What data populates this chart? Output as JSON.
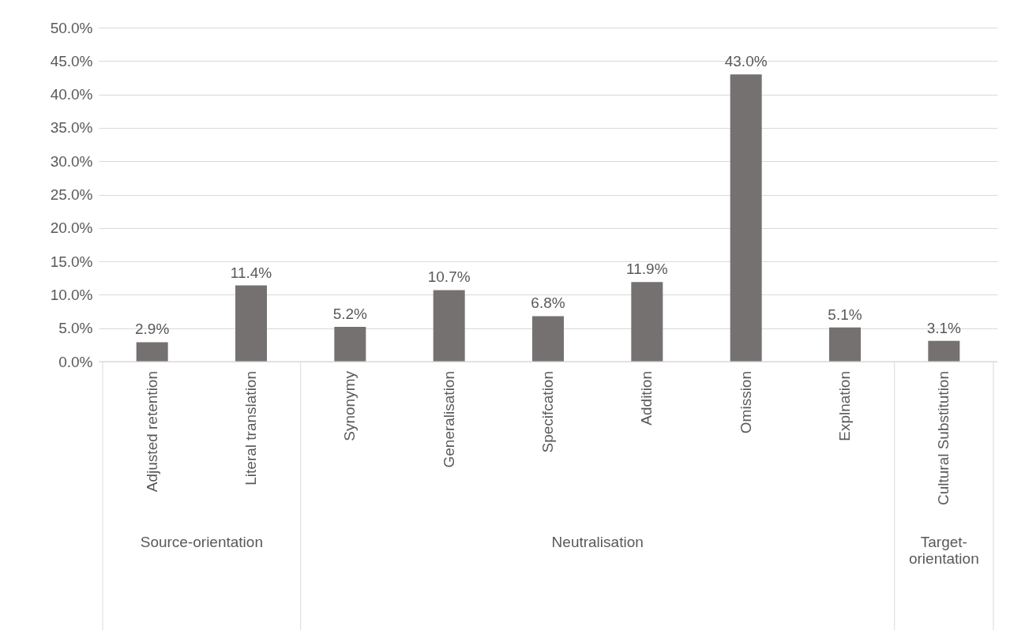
{
  "chart_data": {
    "type": "bar",
    "categories": [
      "Adjusted retention",
      "Literal translation",
      "Synonymy",
      "Generalisation",
      "Specifcation",
      "Addition",
      "Omission",
      "Explnation",
      "Cultural Substitution"
    ],
    "values": [
      2.9,
      11.4,
      5.2,
      10.7,
      6.8,
      11.9,
      43.0,
      5.1,
      3.1
    ],
    "value_labels": [
      "2.9%",
      "11.4%",
      "5.2%",
      "10.7%",
      "6.8%",
      "11.9%",
      "43.0%",
      "5.1%",
      "3.1%"
    ],
    "color": "#767171",
    "ylim": [
      0,
      50
    ],
    "yticks": [
      {
        "value": 0,
        "label": "0.0%"
      },
      {
        "value": 5,
        "label": "5.0%"
      },
      {
        "value": 10,
        "label": "10.0%"
      },
      {
        "value": 15,
        "label": "15.0%"
      },
      {
        "value": 20,
        "label": "20.0%"
      },
      {
        "value": 25,
        "label": "25.0%"
      },
      {
        "value": 30,
        "label": "30.0%"
      },
      {
        "value": 35,
        "label": "35.0%"
      },
      {
        "value": 40,
        "label": "40.0%"
      },
      {
        "value": 45,
        "label": "45.0%"
      },
      {
        "value": 50,
        "label": "50.0%"
      }
    ],
    "grid": "y",
    "annotations": [
      "Source-orientation",
      "Neutralisation",
      "Target-\norientation"
    ]
  }
}
